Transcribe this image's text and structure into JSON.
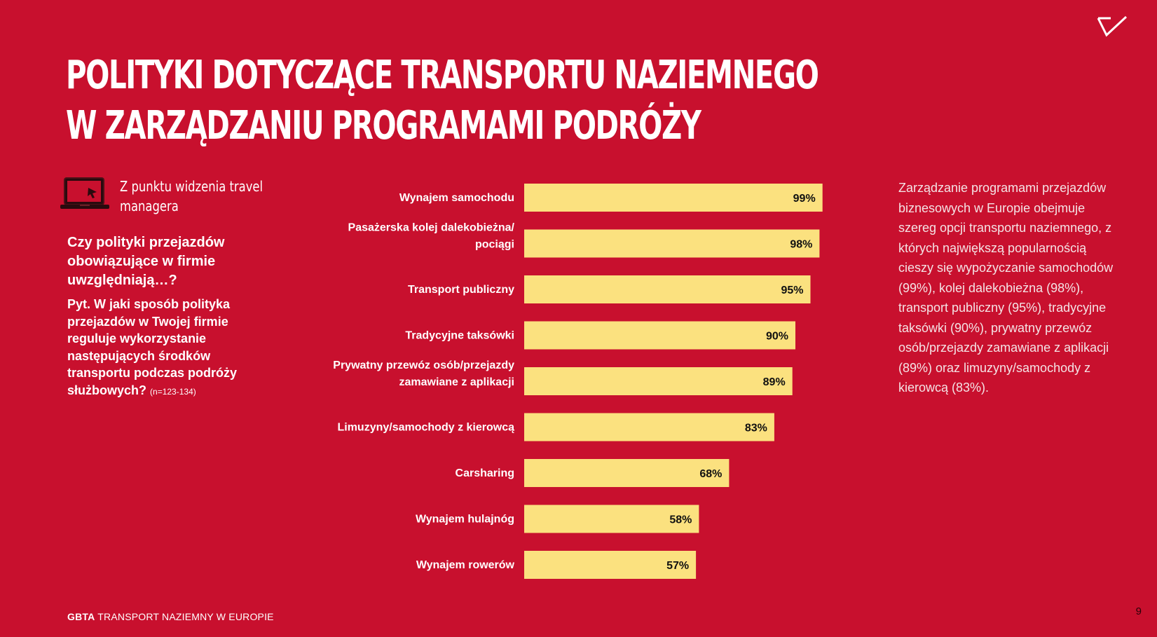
{
  "slide": {
    "title_line1": "POLITYKI DOTYCZĄCE TRANSPORTU NAZIEMNEGO",
    "title_line2": "W ZARZĄDZANIU PROGRAMAMI PODRÓŻY",
    "perspective": "Z punktu widzenia travel managera",
    "question": "Czy polityki przejazdów obowiązujące w firmie uwzględniają…?",
    "prompt": "Pyt. W jaki sposób polityka przejazdów w Twojej firmie reguluje wykorzystanie następujących środków transportu podczas podróży służbowych?",
    "sample_note": "(n=123-134)",
    "description": "Zarządzanie programami przejazdów biznesowych w Europie obejmuje szereg opcji transportu naziemnego, z których największą popularnością cieszy się wypożyczanie samochodów (99%), kolej dalekobieżna (98%), transport publiczny (95%), tradycyjne taksówki (90%), prywatny przewóz osób/przejazdy zamawiane z aplikacji (89%) oraz limuzyny/samochody z kierowcą (83%).",
    "footer_brand": "GBTA",
    "footer_text": "TRANSPORT NAZIEMNY W EUROPIE",
    "page_number": "9",
    "logo_icon": "checkmark-logo-icon",
    "laptop_icon": "laptop-icon"
  },
  "colors": {
    "background": "#c8102e",
    "bar": "#fbe17f",
    "text": "#ffffff",
    "value_text": "#111111"
  },
  "chart_data": {
    "type": "bar",
    "orientation": "horizontal",
    "categories": [
      [
        "Wynajem samochodu"
      ],
      [
        "Pasażerska kolej dalekobieżna/",
        "pociągi"
      ],
      [
        "Transport publiczny"
      ],
      [
        "Tradycyjne taksówki"
      ],
      [
        "Prywatny przewóz osób/przejazdy",
        "zamawiane z aplikacji"
      ],
      [
        "Limuzyny/samochody z kierowcą"
      ],
      [
        "Carsharing"
      ],
      [
        "Wynajem hulajnóg"
      ],
      [
        "Wynajem rowerów"
      ]
    ],
    "values": [
      99,
      98,
      95,
      90,
      89,
      83,
      68,
      58,
      57
    ],
    "value_labels": [
      "99%",
      "98%",
      "95%",
      "90%",
      "89%",
      "83%",
      "68%",
      "58%",
      "57%"
    ],
    "xlim": [
      0,
      100
    ],
    "grid": false,
    "legend": "none"
  }
}
